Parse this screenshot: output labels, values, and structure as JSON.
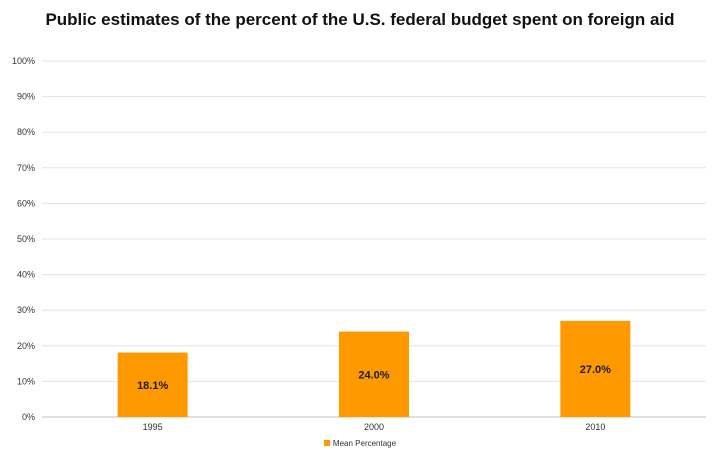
{
  "chart_data": {
    "type": "bar",
    "title": "Public estimates of the percent of the U.S. federal budget spent on foreign aid",
    "categories": [
      "1995",
      "2000",
      "2010"
    ],
    "series": [
      {
        "name": "Mean Percentage",
        "values": [
          18.1,
          24.0,
          27.0
        ],
        "color": "#FF9900"
      }
    ],
    "data_labels": [
      "18.1%",
      "24.0%",
      "27.0%"
    ],
    "y_ticks": [
      "0%",
      "10%",
      "20%",
      "30%",
      "40%",
      "50%",
      "60%",
      "70%",
      "80%",
      "90%",
      "100%"
    ],
    "ylim": [
      0,
      100
    ],
    "xlabel": "",
    "ylabel": "",
    "grid": true,
    "legend_position": "bottom"
  }
}
